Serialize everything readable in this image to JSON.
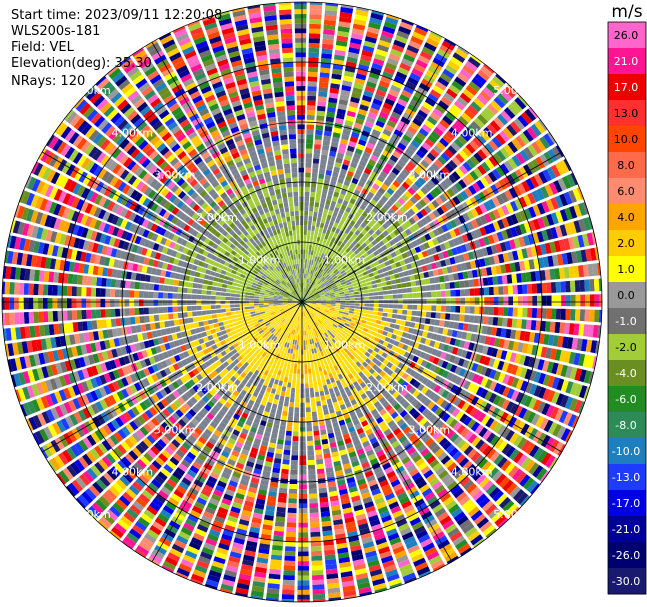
{
  "info": {
    "start_time": "Start time: 2023/09/11 12:20:08",
    "instrument": "WLS200s-181",
    "field": "Field: VEL",
    "elevation": "Elevation(deg): 35.30",
    "nrays": "NRays: 120"
  },
  "chart_data": {
    "type": "heatmap",
    "projection": "polar (PPI scan)",
    "field": "VEL",
    "units": "m/s",
    "nrays": 120,
    "elevation_deg": 35.3,
    "range_rings": [
      {
        "label": "1.00km"
      },
      {
        "label": "2.00km"
      },
      {
        "label": "3.00km"
      },
      {
        "label": "4.00km"
      },
      {
        "label": "5.00km"
      }
    ],
    "spokes_deg": [
      0,
      30,
      60,
      90,
      120,
      150,
      180,
      210,
      240,
      270,
      300,
      330
    ],
    "colorbar": {
      "title": "m/s",
      "ticks": [
        "26.0",
        "21.0",
        "17.0",
        "13.0",
        "10.0",
        "8.0",
        "6.0",
        "4.0",
        "2.0",
        "1.0",
        "0.0",
        "-1.0",
        "-2.0",
        "-4.0",
        "-6.0",
        "-8.0",
        "-10.0",
        "-13.0",
        "-17.0",
        "-21.0",
        "-26.0",
        "-30.0"
      ],
      "colors": [
        "#ff66cc",
        "#ff1493",
        "#ee0000",
        "#ff3030",
        "#ff4500",
        "#ff6a4a",
        "#ff8c70",
        "#ffa500",
        "#ffcc00",
        "#ffff00",
        "#999999",
        "#707070",
        "#a2cd38",
        "#6b8e23",
        "#228b22",
        "#2e8b57",
        "#1e7fc0",
        "#1e3cff",
        "#0000e6",
        "#000099",
        "#000070",
        "#191970"
      ],
      "boundaries": [
        30,
        26,
        21,
        17,
        13,
        10,
        8,
        6,
        4,
        2,
        1,
        0,
        -1,
        -2,
        -4,
        -6,
        -8,
        -10,
        -13,
        -17,
        -21,
        -26,
        -30
      ]
    },
    "near_field_pattern": {
      "north_half": "negative (-1 to -4 m/s, green), receding",
      "south_half": "positive (2 to 6 m/s, yellow), approaching",
      "beyond_about_2.5km": "noise (all colors)"
    }
  }
}
